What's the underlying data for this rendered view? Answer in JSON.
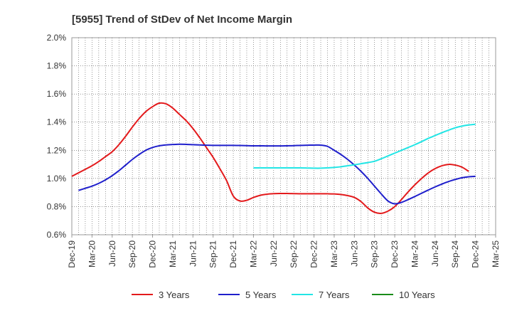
{
  "chart_data": {
    "type": "line",
    "title": "[5955]  Trend of StDev of Net Income Margin",
    "xlabel": "",
    "ylabel": "",
    "ylim": [
      0.6,
      2.0
    ],
    "yticks": [
      "0.6%",
      "0.8%",
      "1.0%",
      "1.2%",
      "1.4%",
      "1.6%",
      "1.8%",
      "2.0%"
    ],
    "xticks": [
      "Dec-19",
      "Mar-20",
      "Jun-20",
      "Sep-20",
      "Dec-20",
      "Mar-21",
      "Jun-21",
      "Sep-21",
      "Dec-21",
      "Mar-22",
      "Jun-22",
      "Sep-22",
      "Dec-22",
      "Mar-23",
      "Jun-23",
      "Sep-23",
      "Dec-23",
      "Mar-24",
      "Jun-24",
      "Sep-24",
      "Dec-24",
      "Mar-25"
    ],
    "grid": true,
    "legend_position": "bottom",
    "series": [
      {
        "name": "3 Years",
        "color": "#e31a1c",
        "points": [
          [
            "Dec-19",
            1.015
          ],
          [
            "Jan-20",
            1.04
          ],
          [
            "Feb-20",
            1.065
          ],
          [
            "Mar-20",
            1.09
          ],
          [
            "Apr-20",
            1.12
          ],
          [
            "May-20",
            1.155
          ],
          [
            "Jun-20",
            1.19
          ],
          [
            "Jul-20",
            1.24
          ],
          [
            "Aug-20",
            1.3
          ],
          [
            "Sep-20",
            1.365
          ],
          [
            "Oct-20",
            1.425
          ],
          [
            "Nov-20",
            1.475
          ],
          [
            "Dec-20",
            1.51
          ],
          [
            "Jan-21",
            1.535
          ],
          [
            "Feb-21",
            1.53
          ],
          [
            "Mar-21",
            1.5
          ],
          [
            "Apr-21",
            1.455
          ],
          [
            "May-21",
            1.41
          ],
          [
            "Jun-21",
            1.355
          ],
          [
            "Jul-21",
            1.29
          ],
          [
            "Aug-21",
            1.22
          ],
          [
            "Sep-21",
            1.15
          ],
          [
            "Oct-21",
            1.07
          ],
          [
            "Nov-21",
            0.985
          ],
          [
            "Dec-21",
            0.875
          ],
          [
            "Jan-22",
            0.84
          ],
          [
            "Feb-22",
            0.845
          ],
          [
            "Mar-22",
            0.865
          ],
          [
            "Apr-22",
            0.88
          ],
          [
            "May-22",
            0.888
          ],
          [
            "Jun-22",
            0.892
          ],
          [
            "Jul-22",
            0.893
          ],
          [
            "Aug-22",
            0.893
          ],
          [
            "Sep-22",
            0.892
          ],
          [
            "Oct-22",
            0.891
          ],
          [
            "Nov-22",
            0.891
          ],
          [
            "Dec-22",
            0.891
          ],
          [
            "Jan-23",
            0.891
          ],
          [
            "Feb-23",
            0.891
          ],
          [
            "Mar-23",
            0.89
          ],
          [
            "Apr-23",
            0.886
          ],
          [
            "May-23",
            0.878
          ],
          [
            "Jun-23",
            0.865
          ],
          [
            "Jul-23",
            0.835
          ],
          [
            "Aug-23",
            0.79
          ],
          [
            "Sep-23",
            0.76
          ],
          [
            "Oct-23",
            0.752
          ],
          [
            "Nov-23",
            0.768
          ],
          [
            "Dec-23",
            0.8
          ],
          [
            "Jan-24",
            0.85
          ],
          [
            "Feb-24",
            0.905
          ],
          [
            "Mar-24",
            0.955
          ],
          [
            "Apr-24",
            1.0
          ],
          [
            "May-24",
            1.04
          ],
          [
            "Jun-24",
            1.07
          ],
          [
            "Jul-24",
            1.09
          ],
          [
            "Aug-24",
            1.1
          ],
          [
            "Sep-24",
            1.095
          ],
          [
            "Oct-24",
            1.08
          ],
          [
            "Nov-24",
            1.05
          ]
        ]
      },
      {
        "name": "5 Years",
        "color": "#1f1fcc",
        "points": [
          [
            "Jan-20",
            0.915
          ],
          [
            "Feb-20",
            0.93
          ],
          [
            "Mar-20",
            0.945
          ],
          [
            "Apr-20",
            0.965
          ],
          [
            "May-20",
            0.99
          ],
          [
            "Jun-20",
            1.02
          ],
          [
            "Jul-20",
            1.055
          ],
          [
            "Aug-20",
            1.095
          ],
          [
            "Sep-20",
            1.135
          ],
          [
            "Oct-20",
            1.17
          ],
          [
            "Nov-20",
            1.2
          ],
          [
            "Dec-20",
            1.22
          ],
          [
            "Jan-21",
            1.232
          ],
          [
            "Feb-21",
            1.238
          ],
          [
            "Mar-21",
            1.241
          ],
          [
            "Apr-21",
            1.243
          ],
          [
            "May-21",
            1.242
          ],
          [
            "Jun-21",
            1.24
          ],
          [
            "Jul-21",
            1.238
          ],
          [
            "Aug-21",
            1.236
          ],
          [
            "Sep-21",
            1.235
          ],
          [
            "Oct-21",
            1.235
          ],
          [
            "Nov-21",
            1.235
          ],
          [
            "Dec-21",
            1.235
          ],
          [
            "Jan-22",
            1.234
          ],
          [
            "Feb-22",
            1.233
          ],
          [
            "Mar-22",
            1.232
          ],
          [
            "Apr-22",
            1.232
          ],
          [
            "May-22",
            1.231
          ],
          [
            "Jun-22",
            1.231
          ],
          [
            "Jul-22",
            1.231
          ],
          [
            "Aug-22",
            1.232
          ],
          [
            "Sep-22",
            1.233
          ],
          [
            "Oct-22",
            1.235
          ],
          [
            "Nov-22",
            1.236
          ],
          [
            "Dec-22",
            1.237
          ],
          [
            "Jan-23",
            1.237
          ],
          [
            "Feb-23",
            1.228
          ],
          [
            "Mar-23",
            1.2
          ],
          [
            "Apr-23",
            1.17
          ],
          [
            "May-23",
            1.135
          ],
          [
            "Jun-23",
            1.095
          ],
          [
            "Jul-23",
            1.05
          ],
          [
            "Aug-23",
            1.0
          ],
          [
            "Sep-23",
            0.945
          ],
          [
            "Oct-23",
            0.89
          ],
          [
            "Nov-23",
            0.84
          ],
          [
            "Dec-23",
            0.82
          ],
          [
            "Jan-24",
            0.83
          ],
          [
            "Feb-24",
            0.85
          ],
          [
            "Mar-24",
            0.872
          ],
          [
            "Apr-24",
            0.895
          ],
          [
            "May-24",
            0.918
          ],
          [
            "Jun-24",
            0.94
          ],
          [
            "Jul-24",
            0.96
          ],
          [
            "Aug-24",
            0.978
          ],
          [
            "Sep-24",
            0.993
          ],
          [
            "Oct-24",
            1.005
          ],
          [
            "Nov-24",
            1.012
          ],
          [
            "Dec-24",
            1.015
          ]
        ]
      },
      {
        "name": "7 Years",
        "color": "#22e5e5",
        "points": [
          [
            "Mar-22",
            1.075
          ],
          [
            "Apr-22",
            1.075
          ],
          [
            "May-22",
            1.075
          ],
          [
            "Jun-22",
            1.075
          ],
          [
            "Jul-22",
            1.075
          ],
          [
            "Aug-22",
            1.075
          ],
          [
            "Sep-22",
            1.075
          ],
          [
            "Oct-22",
            1.075
          ],
          [
            "Nov-22",
            1.074
          ],
          [
            "Dec-22",
            1.073
          ],
          [
            "Jan-23",
            1.073
          ],
          [
            "Feb-23",
            1.075
          ],
          [
            "Mar-23",
            1.078
          ],
          [
            "Apr-23",
            1.083
          ],
          [
            "May-23",
            1.09
          ],
          [
            "Jun-23",
            1.097
          ],
          [
            "Jul-23",
            1.105
          ],
          [
            "Aug-23",
            1.113
          ],
          [
            "Sep-23",
            1.122
          ],
          [
            "Oct-23",
            1.14
          ],
          [
            "Nov-23",
            1.16
          ],
          [
            "Dec-23",
            1.18
          ],
          [
            "Jan-24",
            1.2
          ],
          [
            "Feb-24",
            1.22
          ],
          [
            "Mar-24",
            1.24
          ],
          [
            "Apr-24",
            1.262
          ],
          [
            "May-24",
            1.285
          ],
          [
            "Jun-24",
            1.305
          ],
          [
            "Jul-24",
            1.325
          ],
          [
            "Aug-24",
            1.343
          ],
          [
            "Sep-24",
            1.36
          ],
          [
            "Oct-24",
            1.372
          ],
          [
            "Nov-24",
            1.38
          ],
          [
            "Dec-24",
            1.385
          ]
        ]
      },
      {
        "name": "10 Years",
        "color": "#1a8c1a",
        "points": []
      }
    ]
  }
}
